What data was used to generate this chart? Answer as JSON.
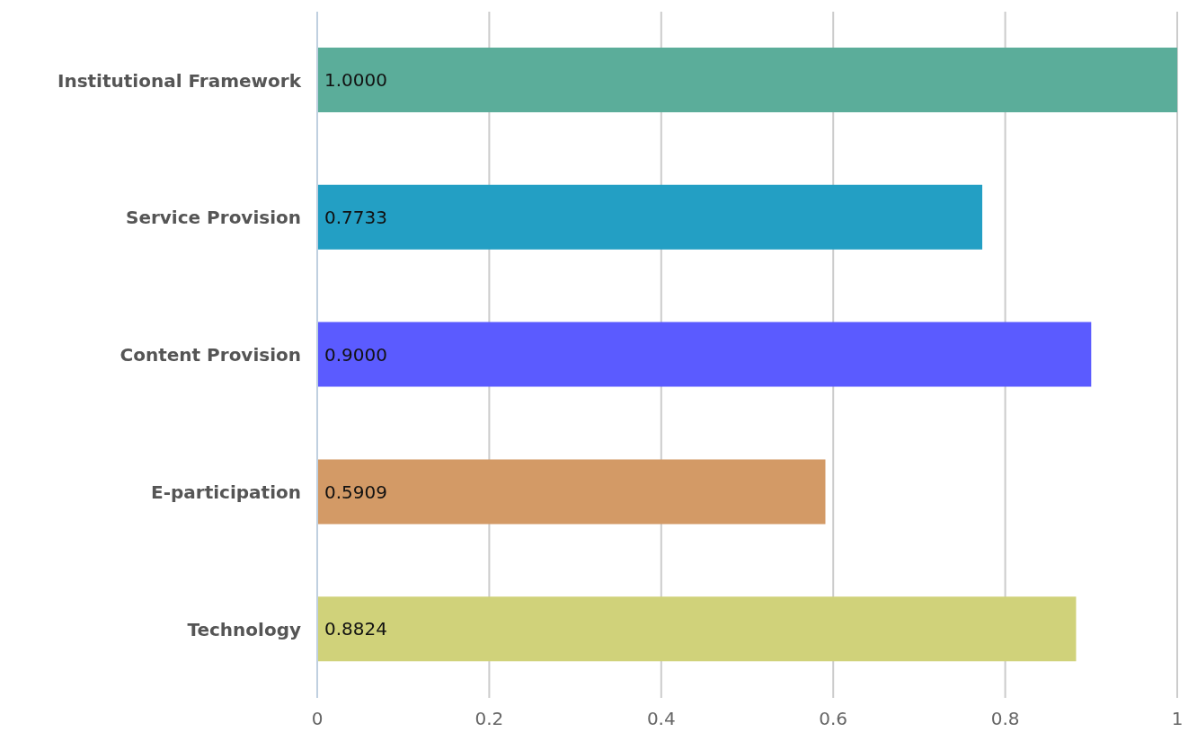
{
  "chart_data": {
    "type": "bar",
    "orientation": "horizontal",
    "categories": [
      "Institutional Framework",
      "Service Provision",
      "Content Provision",
      "E-participation",
      "Technology"
    ],
    "values": [
      1.0,
      0.7733,
      0.9,
      0.5909,
      0.8824
    ],
    "colors": [
      "#5bad9a",
      "#239fc4",
      "#5b5bff",
      "#d39a66",
      "#d0d27a"
    ],
    "value_labels": [
      "1.0000",
      "0.7733",
      "0.9000",
      "0.5909",
      "0.8824"
    ],
    "xlim": [
      0,
      1
    ],
    "xticks": [
      0,
      0.2,
      0.4,
      0.6,
      0.8,
      1
    ],
    "grid": "x"
  }
}
